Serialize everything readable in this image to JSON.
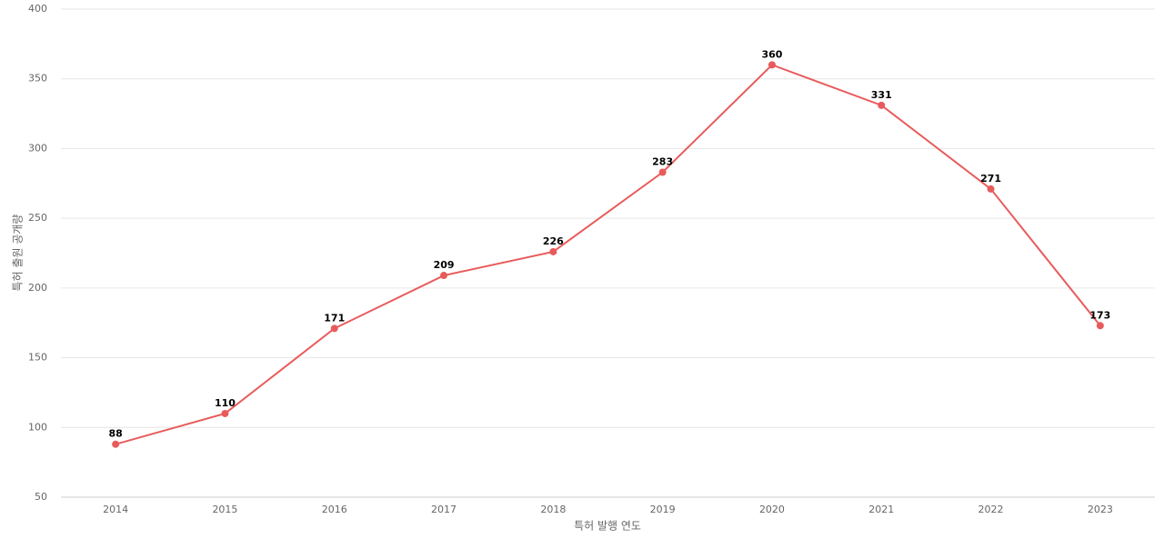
{
  "chart_data": {
    "type": "line",
    "x_label": "특허 발행 연도",
    "y_label": "특허 출원 공개량",
    "categories": [
      "2014",
      "2015",
      "2016",
      "2017",
      "2018",
      "2019",
      "2020",
      "2021",
      "2022",
      "2023"
    ],
    "values": [
      88,
      110,
      171,
      209,
      226,
      283,
      360,
      331,
      271,
      173
    ],
    "color": "#e85b5b",
    "ylim": [
      50,
      400
    ],
    "yticks": [
      50,
      100,
      150,
      200,
      250,
      300,
      350,
      400
    ],
    "grid": true
  }
}
